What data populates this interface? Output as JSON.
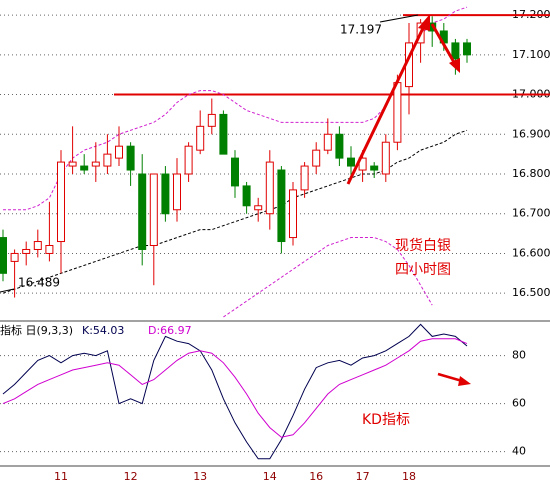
{
  "chart_data": [
    {
      "type": "candlestick",
      "categories": [
        null,
        null,
        null,
        null,
        null,
        "11",
        null,
        null,
        null,
        null,
        null,
        "12",
        null,
        null,
        null,
        null,
        null,
        "13",
        null,
        null,
        null,
        null,
        null,
        "14",
        null,
        null,
        null,
        "16",
        null,
        null,
        null,
        "17",
        null,
        null,
        null,
        "18",
        null,
        null,
        null,
        null,
        null
      ],
      "open": [
        16.64,
        16.58,
        16.6,
        16.61,
        16.6,
        16.63,
        16.82,
        16.82,
        16.82,
        16.82,
        16.84,
        16.87,
        16.8,
        16.62,
        16.8,
        16.71,
        16.8,
        16.86,
        16.92,
        16.95,
        16.84,
        16.77,
        16.71,
        16.7,
        16.81,
        16.64,
        16.76,
        16.82,
        16.86,
        16.9,
        16.84,
        16.81,
        16.82,
        16.8,
        16.88,
        17.02,
        17.13,
        17.18,
        17.16,
        17.13,
        17.13
      ],
      "high": [
        16.66,
        16.61,
        16.63,
        16.66,
        16.73,
        16.86,
        16.92,
        16.85,
        16.88,
        16.9,
        16.92,
        16.88,
        16.85,
        16.8,
        16.82,
        16.84,
        16.88,
        16.96,
        16.99,
        16.96,
        16.86,
        16.78,
        16.74,
        16.86,
        16.82,
        16.78,
        16.83,
        16.88,
        16.94,
        16.92,
        16.87,
        16.86,
        16.83,
        16.9,
        17.05,
        17.18,
        17.19,
        17.197,
        17.18,
        17.14,
        17.14
      ],
      "low": [
        16.53,
        16.489,
        16.57,
        16.59,
        16.58,
        16.55,
        16.8,
        16.8,
        16.78,
        16.8,
        16.82,
        16.77,
        16.57,
        16.52,
        16.68,
        16.68,
        16.78,
        16.85,
        16.9,
        16.85,
        16.74,
        16.7,
        16.68,
        16.66,
        16.6,
        16.62,
        16.74,
        16.8,
        16.85,
        16.82,
        16.79,
        16.78,
        16.79,
        16.78,
        16.86,
        16.95,
        17.08,
        17.12,
        17.11,
        17.05,
        17.08
      ],
      "close": [
        16.55,
        16.6,
        16.61,
        16.63,
        16.62,
        16.83,
        16.83,
        16.81,
        16.83,
        16.85,
        16.87,
        16.81,
        16.61,
        16.8,
        16.7,
        16.8,
        16.87,
        16.92,
        16.95,
        16.85,
        16.77,
        16.72,
        16.72,
        16.83,
        16.63,
        16.76,
        16.82,
        16.86,
        16.9,
        16.84,
        16.82,
        16.84,
        16.81,
        16.88,
        17.03,
        17.13,
        17.18,
        17.16,
        17.13,
        17.09,
        17.1
      ],
      "up_color": "#e00000",
      "down_color": "#008000",
      "overlays": [
        {
          "color": "#d020d0",
          "values": [
            16.71,
            16.71,
            16.71,
            16.72,
            16.74,
            16.8,
            16.84,
            16.86,
            16.87,
            16.88,
            16.9,
            16.91,
            16.92,
            16.93,
            16.95,
            16.98,
            17.0,
            17.01,
            17.01,
            17.0,
            16.98,
            16.96,
            16.95,
            16.94,
            16.93,
            16.93,
            16.93,
            16.93,
            16.93,
            16.93,
            16.93,
            16.93,
            16.94,
            16.97,
            17.03,
            17.1,
            17.15,
            17.18,
            17.19,
            17.21,
            17.22
          ]
        },
        {
          "color": "#000000",
          "values": [
            16.5,
            16.51,
            16.52,
            16.53,
            16.54,
            16.55,
            16.56,
            16.57,
            16.58,
            16.59,
            16.6,
            16.61,
            16.62,
            16.62,
            16.63,
            16.64,
            16.65,
            16.66,
            16.66,
            16.67,
            16.68,
            16.69,
            16.7,
            16.71,
            16.72,
            16.74,
            16.75,
            16.76,
            16.77,
            16.78,
            16.79,
            16.8,
            16.8,
            16.81,
            16.83,
            16.84,
            16.86,
            16.87,
            16.88,
            16.9,
            16.91
          ]
        },
        {
          "color": "#d020d0",
          "values": [
            null,
            null,
            null,
            null,
            null,
            null,
            null,
            null,
            null,
            null,
            null,
            null,
            null,
            null,
            null,
            null,
            null,
            null,
            null,
            16.44,
            16.46,
            16.48,
            16.5,
            16.52,
            16.54,
            16.56,
            16.58,
            16.6,
            16.62,
            16.63,
            16.64,
            16.64,
            16.64,
            16.63,
            16.61,
            16.57,
            16.52,
            16.47,
            null,
            null,
            null
          ]
        }
      ],
      "hlines": [
        {
          "value": 17.2,
          "color": "#e00000"
        },
        {
          "value": 17.0,
          "color": "#e00000"
        }
      ],
      "annotations": [
        "17.197",
        "16.489",
        "现货白银",
        "四小时图"
      ],
      "ylim": [
        16.435,
        17.238
      ],
      "yticks": [
        {
          "value": 17.2,
          "label": "17.200"
        },
        {
          "value": 17.1,
          "label": "17.100"
        },
        {
          "value": 17.0,
          "label": "17.000"
        },
        {
          "value": 16.9,
          "label": "16.900"
        },
        {
          "value": 16.8,
          "label": "16.800"
        },
        {
          "value": 16.7,
          "label": "16.700"
        },
        {
          "value": 16.6,
          "label": "16.600"
        },
        {
          "value": 16.5,
          "label": "16.500"
        }
      ],
      "grid": true
    },
    {
      "type": "line",
      "title": "指标 日(9,3,3)",
      "annotation": "KD指标",
      "series": [
        {
          "name": "K:54.03",
          "color": "#000050",
          "values": [
            64,
            68,
            73,
            78,
            80,
            77,
            80,
            81,
            80,
            82,
            60,
            62,
            60,
            78,
            88,
            86,
            85,
            82,
            74,
            62,
            52,
            44,
            37,
            37,
            45,
            55,
            66,
            75,
            77,
            78,
            76,
            79,
            80,
            82,
            85,
            88,
            93,
            88,
            89,
            88,
            84
          ]
        },
        {
          "name": "D:66.97",
          "color": "#d000d0",
          "values": [
            60,
            62,
            65,
            68,
            70,
            72,
            74,
            75,
            76,
            77,
            76,
            72,
            68,
            70,
            74,
            78,
            81,
            82,
            81,
            77,
            71,
            64,
            56,
            50,
            46,
            47,
            52,
            58,
            64,
            68,
            70,
            72,
            74,
            76,
            79,
            82,
            86,
            87,
            87,
            87,
            85
          ]
        }
      ],
      "ylim": [
        34,
        94
      ],
      "yticks": [
        80,
        60,
        40
      ],
      "grid": true
    }
  ]
}
